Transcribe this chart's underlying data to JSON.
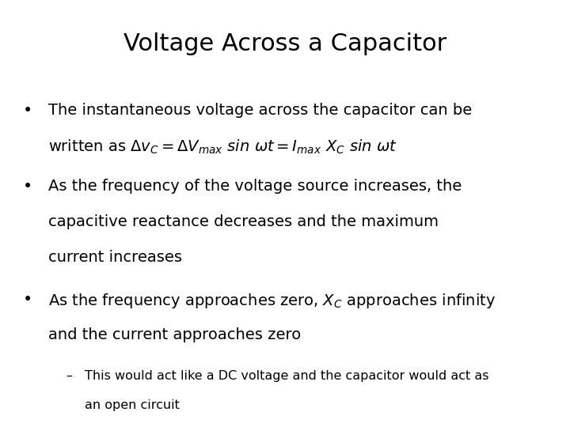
{
  "title": "Voltage Across a Capacitor",
  "title_fontsize": 22,
  "background_color": "#ffffff",
  "text_color": "#000000",
  "bullet1_line1": "The instantaneous voltage across the capacitor can be",
  "bullet1_line2_prefix": "written as ",
  "bullet2_line1": "As the frequency of the voltage source increases, the",
  "bullet2_line2": "capacitive reactance decreases and the maximum",
  "bullet2_line3": "current increases",
  "bullet3_line1_pre": "As the frequency approaches zero, ",
  "bullet3_line1_post": " approaches infinity",
  "bullet3_line2": "and the current approaches zero",
  "sub_bullet_line1": "This would act like a DC voltage and the capacitor would act as",
  "sub_bullet_line2": "an open circuit",
  "body_fontsize": 14,
  "sub_fontsize": 11.5,
  "fig_width": 7.2,
  "fig_height": 5.4,
  "dpi": 100
}
